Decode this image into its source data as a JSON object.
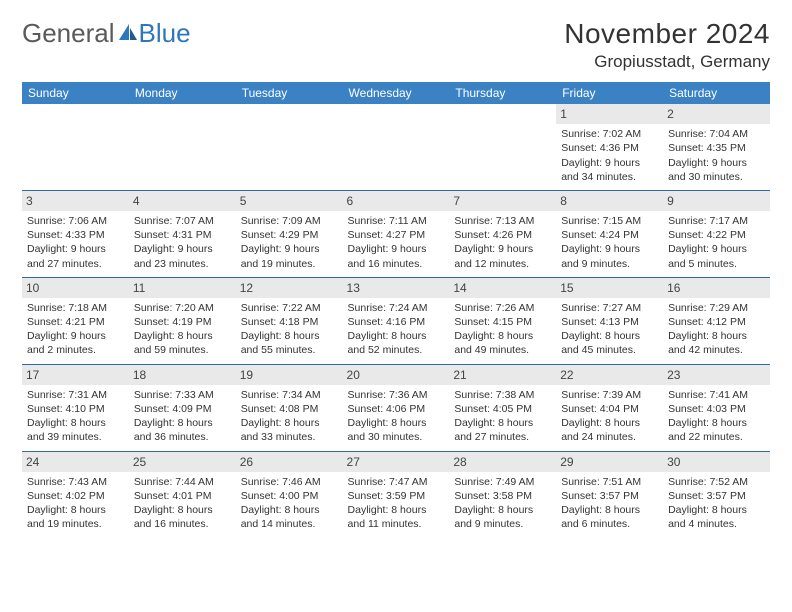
{
  "logo": {
    "part1": "General",
    "part2": "Blue"
  },
  "title": "November 2024",
  "location": "Gropiusstadt, Germany",
  "colors": {
    "header_bg": "#3a82c4",
    "row_border": "#2f6aa8",
    "daynum_bg": "#e9e9e9"
  },
  "weekdays": [
    "Sunday",
    "Monday",
    "Tuesday",
    "Wednesday",
    "Thursday",
    "Friday",
    "Saturday"
  ],
  "weeks": [
    [
      {
        "n": "",
        "sr": "",
        "ss": "",
        "dl": ""
      },
      {
        "n": "",
        "sr": "",
        "ss": "",
        "dl": ""
      },
      {
        "n": "",
        "sr": "",
        "ss": "",
        "dl": ""
      },
      {
        "n": "",
        "sr": "",
        "ss": "",
        "dl": ""
      },
      {
        "n": "",
        "sr": "",
        "ss": "",
        "dl": ""
      },
      {
        "n": "1",
        "sr": "Sunrise: 7:02 AM",
        "ss": "Sunset: 4:36 PM",
        "dl": "Daylight: 9 hours and 34 minutes."
      },
      {
        "n": "2",
        "sr": "Sunrise: 7:04 AM",
        "ss": "Sunset: 4:35 PM",
        "dl": "Daylight: 9 hours and 30 minutes."
      }
    ],
    [
      {
        "n": "3",
        "sr": "Sunrise: 7:06 AM",
        "ss": "Sunset: 4:33 PM",
        "dl": "Daylight: 9 hours and 27 minutes."
      },
      {
        "n": "4",
        "sr": "Sunrise: 7:07 AM",
        "ss": "Sunset: 4:31 PM",
        "dl": "Daylight: 9 hours and 23 minutes."
      },
      {
        "n": "5",
        "sr": "Sunrise: 7:09 AM",
        "ss": "Sunset: 4:29 PM",
        "dl": "Daylight: 9 hours and 19 minutes."
      },
      {
        "n": "6",
        "sr": "Sunrise: 7:11 AM",
        "ss": "Sunset: 4:27 PM",
        "dl": "Daylight: 9 hours and 16 minutes."
      },
      {
        "n": "7",
        "sr": "Sunrise: 7:13 AM",
        "ss": "Sunset: 4:26 PM",
        "dl": "Daylight: 9 hours and 12 minutes."
      },
      {
        "n": "8",
        "sr": "Sunrise: 7:15 AM",
        "ss": "Sunset: 4:24 PM",
        "dl": "Daylight: 9 hours and 9 minutes."
      },
      {
        "n": "9",
        "sr": "Sunrise: 7:17 AM",
        "ss": "Sunset: 4:22 PM",
        "dl": "Daylight: 9 hours and 5 minutes."
      }
    ],
    [
      {
        "n": "10",
        "sr": "Sunrise: 7:18 AM",
        "ss": "Sunset: 4:21 PM",
        "dl": "Daylight: 9 hours and 2 minutes."
      },
      {
        "n": "11",
        "sr": "Sunrise: 7:20 AM",
        "ss": "Sunset: 4:19 PM",
        "dl": "Daylight: 8 hours and 59 minutes."
      },
      {
        "n": "12",
        "sr": "Sunrise: 7:22 AM",
        "ss": "Sunset: 4:18 PM",
        "dl": "Daylight: 8 hours and 55 minutes."
      },
      {
        "n": "13",
        "sr": "Sunrise: 7:24 AM",
        "ss": "Sunset: 4:16 PM",
        "dl": "Daylight: 8 hours and 52 minutes."
      },
      {
        "n": "14",
        "sr": "Sunrise: 7:26 AM",
        "ss": "Sunset: 4:15 PM",
        "dl": "Daylight: 8 hours and 49 minutes."
      },
      {
        "n": "15",
        "sr": "Sunrise: 7:27 AM",
        "ss": "Sunset: 4:13 PM",
        "dl": "Daylight: 8 hours and 45 minutes."
      },
      {
        "n": "16",
        "sr": "Sunrise: 7:29 AM",
        "ss": "Sunset: 4:12 PM",
        "dl": "Daylight: 8 hours and 42 minutes."
      }
    ],
    [
      {
        "n": "17",
        "sr": "Sunrise: 7:31 AM",
        "ss": "Sunset: 4:10 PM",
        "dl": "Daylight: 8 hours and 39 minutes."
      },
      {
        "n": "18",
        "sr": "Sunrise: 7:33 AM",
        "ss": "Sunset: 4:09 PM",
        "dl": "Daylight: 8 hours and 36 minutes."
      },
      {
        "n": "19",
        "sr": "Sunrise: 7:34 AM",
        "ss": "Sunset: 4:08 PM",
        "dl": "Daylight: 8 hours and 33 minutes."
      },
      {
        "n": "20",
        "sr": "Sunrise: 7:36 AM",
        "ss": "Sunset: 4:06 PM",
        "dl": "Daylight: 8 hours and 30 minutes."
      },
      {
        "n": "21",
        "sr": "Sunrise: 7:38 AM",
        "ss": "Sunset: 4:05 PM",
        "dl": "Daylight: 8 hours and 27 minutes."
      },
      {
        "n": "22",
        "sr": "Sunrise: 7:39 AM",
        "ss": "Sunset: 4:04 PM",
        "dl": "Daylight: 8 hours and 24 minutes."
      },
      {
        "n": "23",
        "sr": "Sunrise: 7:41 AM",
        "ss": "Sunset: 4:03 PM",
        "dl": "Daylight: 8 hours and 22 minutes."
      }
    ],
    [
      {
        "n": "24",
        "sr": "Sunrise: 7:43 AM",
        "ss": "Sunset: 4:02 PM",
        "dl": "Daylight: 8 hours and 19 minutes."
      },
      {
        "n": "25",
        "sr": "Sunrise: 7:44 AM",
        "ss": "Sunset: 4:01 PM",
        "dl": "Daylight: 8 hours and 16 minutes."
      },
      {
        "n": "26",
        "sr": "Sunrise: 7:46 AM",
        "ss": "Sunset: 4:00 PM",
        "dl": "Daylight: 8 hours and 14 minutes."
      },
      {
        "n": "27",
        "sr": "Sunrise: 7:47 AM",
        "ss": "Sunset: 3:59 PM",
        "dl": "Daylight: 8 hours and 11 minutes."
      },
      {
        "n": "28",
        "sr": "Sunrise: 7:49 AM",
        "ss": "Sunset: 3:58 PM",
        "dl": "Daylight: 8 hours and 9 minutes."
      },
      {
        "n": "29",
        "sr": "Sunrise: 7:51 AM",
        "ss": "Sunset: 3:57 PM",
        "dl": "Daylight: 8 hours and 6 minutes."
      },
      {
        "n": "30",
        "sr": "Sunrise: 7:52 AM",
        "ss": "Sunset: 3:57 PM",
        "dl": "Daylight: 8 hours and 4 minutes."
      }
    ]
  ]
}
